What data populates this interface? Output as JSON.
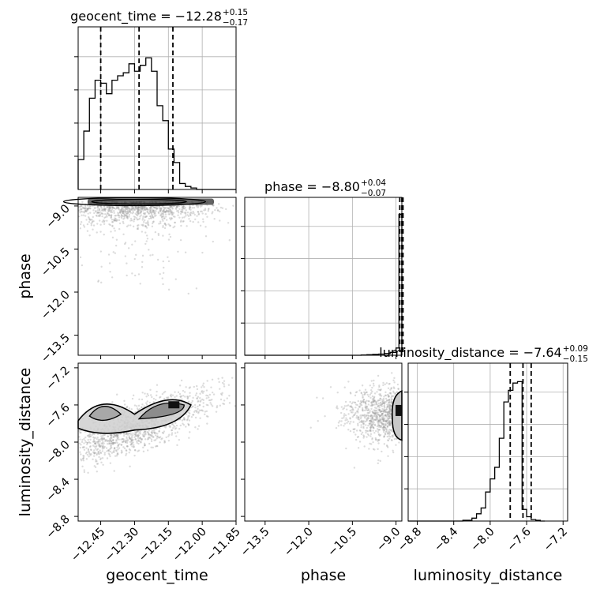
{
  "chart_data": [
    {
      "type": "histogram",
      "panel": "geocent_time-marginal",
      "title": {
        "prefix": "geocent_time = ",
        "value": "−12.28",
        "plus": "+0.15",
        "minus": "−0.17"
      },
      "xlim": [
        -12.55,
        -11.85
      ],
      "bin_edges": [
        -12.55,
        -12.525,
        -12.5,
        -12.475,
        -12.45,
        -12.425,
        -12.4,
        -12.375,
        -12.35,
        -12.325,
        -12.3,
        -12.275,
        -12.25,
        -12.225,
        -12.2,
        -12.175,
        -12.15,
        -12.125,
        -12.1,
        -12.075,
        -12.05,
        -12.025,
        -12.0,
        -11.975,
        -11.95,
        -11.925,
        -11.9,
        -11.875,
        -11.85
      ],
      "counts": [
        0.2,
        0.39,
        0.61,
        0.73,
        0.71,
        0.64,
        0.73,
        0.76,
        0.78,
        0.84,
        0.79,
        0.83,
        0.88,
        0.79,
        0.56,
        0.46,
        0.27,
        0.18,
        0.04,
        0.02,
        0.01,
        0.0,
        0.0,
        0.0,
        0.0,
        0.0,
        0.0,
        0.0
      ],
      "quantiles": [
        -12.45,
        -12.28,
        -12.13
      ],
      "grid": true
    },
    {
      "type": "histogram",
      "panel": "phase-marginal",
      "title": {
        "prefix": "phase = ",
        "value": "−8.80",
        "plus": "+0.04",
        "minus": "−0.07"
      },
      "xlim": [
        -14.2,
        -8.8
      ],
      "bin_edges": [
        -14.2,
        -14.0,
        -13.8,
        -13.6,
        -13.4,
        -13.2,
        -13.0,
        -12.8,
        -12.6,
        -12.4,
        -12.2,
        -12.0,
        -11.8,
        -11.6,
        -11.4,
        -11.2,
        -11.0,
        -10.8,
        -10.6,
        -10.4,
        -10.2,
        -10.0,
        -9.8,
        -9.6,
        -9.4,
        -9.2,
        -9.0,
        -8.9,
        -8.8
      ],
      "counts": [
        0,
        0,
        0,
        0,
        0,
        0,
        0,
        0,
        0,
        0,
        0,
        0,
        0,
        0,
        0,
        0,
        0,
        0,
        0,
        0,
        0.002,
        0.004,
        0.006,
        0.008,
        0.012,
        0.02,
        0.05,
        0.97
      ],
      "quantiles": [
        -8.87,
        -8.8,
        -8.76
      ],
      "grid": true
    },
    {
      "type": "histogram",
      "panel": "luminosity_distance-marginal",
      "title": {
        "prefix": "luminosity_distance = ",
        "value": "−7.64",
        "plus": "+0.09",
        "minus": "−0.15"
      },
      "xlim": [
        -8.9,
        -7.15
      ],
      "bin_edges": [
        -8.9,
        -8.3,
        -8.2,
        -8.15,
        -8.1,
        -8.05,
        -8.0,
        -7.95,
        -7.9,
        -7.85,
        -7.8,
        -7.75,
        -7.7,
        -7.65,
        -7.6,
        -7.55,
        -7.5,
        -7.45,
        -7.4
      ],
      "counts": [
        0,
        0.005,
        0.02,
        0.05,
        0.09,
        0.2,
        0.29,
        0.37,
        0.57,
        0.82,
        0.9,
        0.95,
        0.96,
        0.08,
        0.03,
        0.01,
        0.005,
        0.0
      ],
      "quantiles": [
        -7.78,
        -7.64,
        -7.55
      ],
      "grid": true
    },
    {
      "type": "scatter-density",
      "panel": "phase-vs-geocent_time",
      "x": "geocent_time",
      "y": "phase",
      "xlim": [
        -12.55,
        -11.85
      ],
      "ylim": [
        -14.2,
        -8.7
      ],
      "points_cluster": {
        "x_center": -12.3,
        "x_spread": 0.18,
        "y_center": -8.85
      }
    },
    {
      "type": "scatter-density",
      "panel": "luminosity_distance-vs-geocent_time",
      "x": "geocent_time",
      "y": "luminosity_distance",
      "xlim": [
        -12.55,
        -11.85
      ],
      "ylim": [
        -8.85,
        -7.15
      ],
      "modes": [
        {
          "x": -12.44,
          "y": -7.72
        },
        {
          "x": -12.22,
          "y": -7.7
        },
        {
          "x": -12.12,
          "y": -7.6
        }
      ]
    },
    {
      "type": "scatter-density",
      "panel": "luminosity_distance-vs-phase",
      "x": "phase",
      "y": "luminosity_distance",
      "xlim": [
        -14.2,
        -8.8
      ],
      "ylim": [
        -8.85,
        -7.15
      ],
      "modes": [
        {
          "x": -8.85,
          "y": -7.7
        }
      ]
    }
  ],
  "axes": {
    "geocent_time": {
      "label": "geocent_time",
      "ticks": [
        -12.45,
        -12.3,
        -12.15,
        -12.0,
        -11.85
      ],
      "tick_labels": [
        "−12.45",
        "−12.30",
        "−12.15",
        "−12.00",
        "−11.85"
      ]
    },
    "phase": {
      "label": "phase",
      "ticks": [
        -13.5,
        -12.0,
        -10.5,
        -9.0
      ],
      "tick_labels": [
        "−13.5",
        "−12.0",
        "−10.5",
        "−9.0"
      ]
    },
    "luminosity_distance": {
      "label": "luminosity_distance",
      "ticks": [
        -8.8,
        -8.4,
        -8.0,
        -7.6,
        -7.2
      ],
      "tick_labels": [
        "−8.8",
        "−8.4",
        "−8.0",
        "−7.6",
        "−7.2"
      ]
    }
  },
  "colors": {
    "line": "#000000",
    "grid": "#b0b0b0",
    "points": "#9a9a9a"
  }
}
